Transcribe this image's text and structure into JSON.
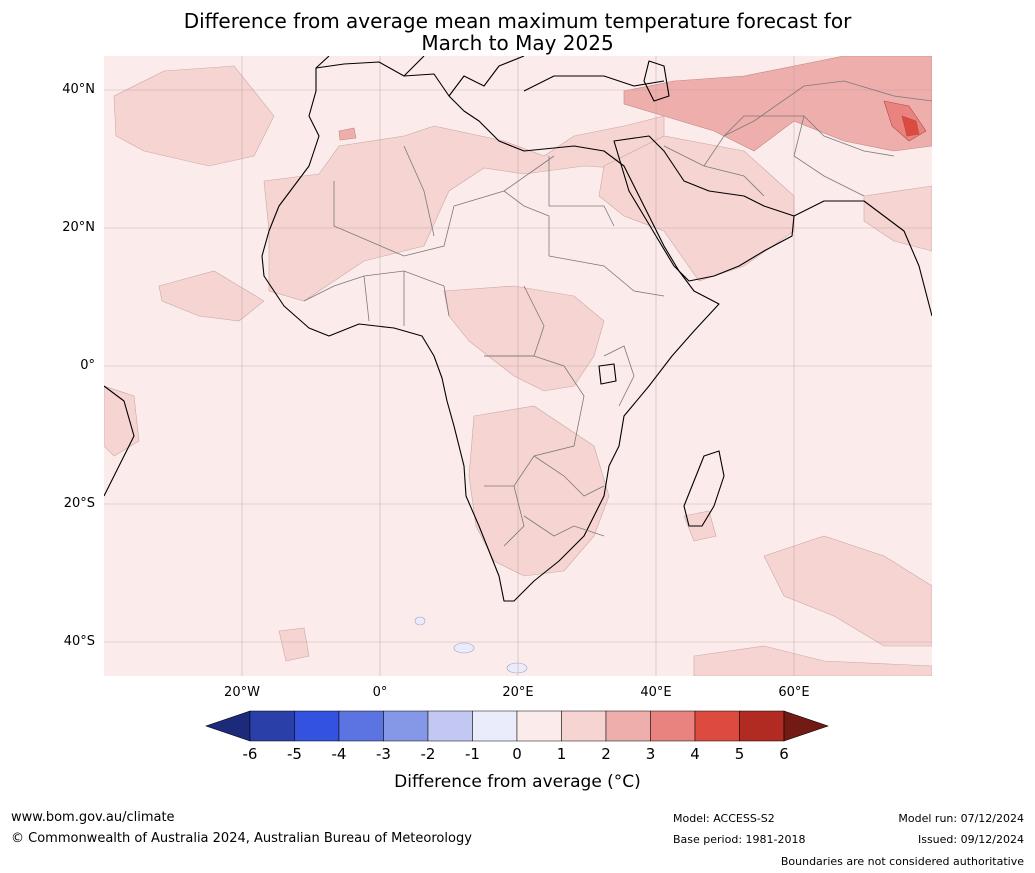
{
  "title_line1": "Difference from average mean maximum temperature forecast for",
  "title_line2": "March to May 2025",
  "map": {
    "lat_labels": [
      "40°N",
      "20°N",
      "0°",
      "20°S",
      "40°S"
    ],
    "lon_labels": [
      "20°W",
      "0°",
      "20°E",
      "40°E",
      "60°E"
    ],
    "base_color": "#fbeceb"
  },
  "colorbar": {
    "ticks": [
      "-6",
      "-5",
      "-4",
      "-3",
      "-2",
      "-1",
      "0",
      "1",
      "2",
      "3",
      "4",
      "5",
      "6"
    ],
    "colors": [
      "#2a3fa8",
      "#3352e0",
      "#5b74e2",
      "#8598e8",
      "#c2c8f2",
      "#ebecfb",
      "#fbeceb",
      "#f6d4d2",
      "#eeaeac",
      "#e8837f",
      "#dc4a40",
      "#b22b22"
    ],
    "under_color": "#1b2a7a",
    "over_color": "#741a14",
    "label": "Difference from average (°C)"
  },
  "footer": {
    "website": "www.bom.gov.au/climate",
    "copyright": "© Commonwealth of Australia 2024, Australian Bureau of Meteorology",
    "model": "Model: ACCESS-S2",
    "base_period": "Base period: 1981-2018",
    "model_run": "Model run: 07/12/2024",
    "issued": "Issued: 09/12/2024",
    "disclaimer": "Boundaries are not considered authoritative"
  }
}
